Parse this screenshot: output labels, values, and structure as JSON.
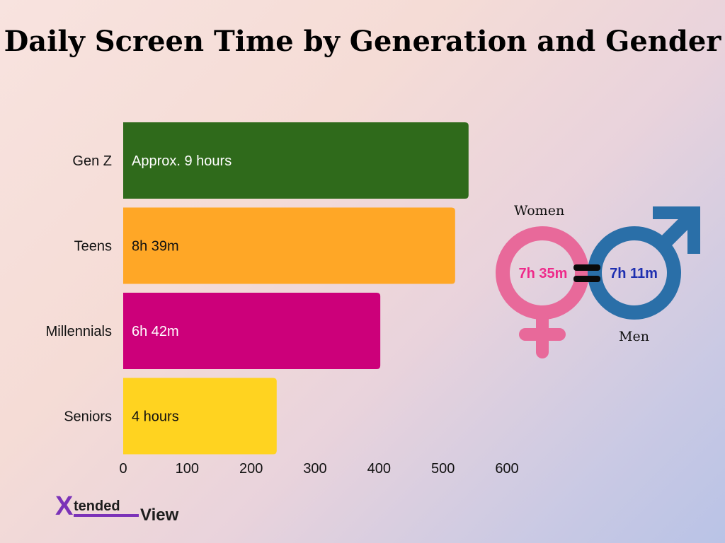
{
  "chart_data": {
    "type": "bar",
    "orientation": "horizontal",
    "title": "Daily Screen Time by Generation and Gender",
    "categories": [
      "Gen Z",
      "Teens",
      "Millennials",
      "Seniors"
    ],
    "values": [
      540,
      519,
      402,
      240
    ],
    "data_labels": [
      "Approx. 9 hours",
      "8h 39m",
      "6h 42m",
      "4 hours"
    ],
    "bar_colors": [
      "#2f6a1b",
      "#ffa726",
      "#cc007a",
      "#ffd320"
    ],
    "label_colors": [
      "#ffffff",
      "#111111",
      "#ffffff",
      "#111111"
    ],
    "x_ticks": [
      0,
      100,
      200,
      300,
      400,
      500,
      600
    ],
    "xlim": [
      0,
      600
    ],
    "grid": false
  },
  "gender": {
    "women_label": "Women",
    "women_value": "7h 35m",
    "men_label": "Men",
    "men_value": "7h 11m",
    "women_color": "#e8699a",
    "men_color": "#2a6fa8",
    "women_text_color": "#ee2a8a",
    "men_text_color": "#1e2fb0"
  },
  "brand": {
    "logo_letter": "X",
    "logo_text": "tended",
    "logo_text_2": "View",
    "logo_color": "#7b32b8"
  }
}
